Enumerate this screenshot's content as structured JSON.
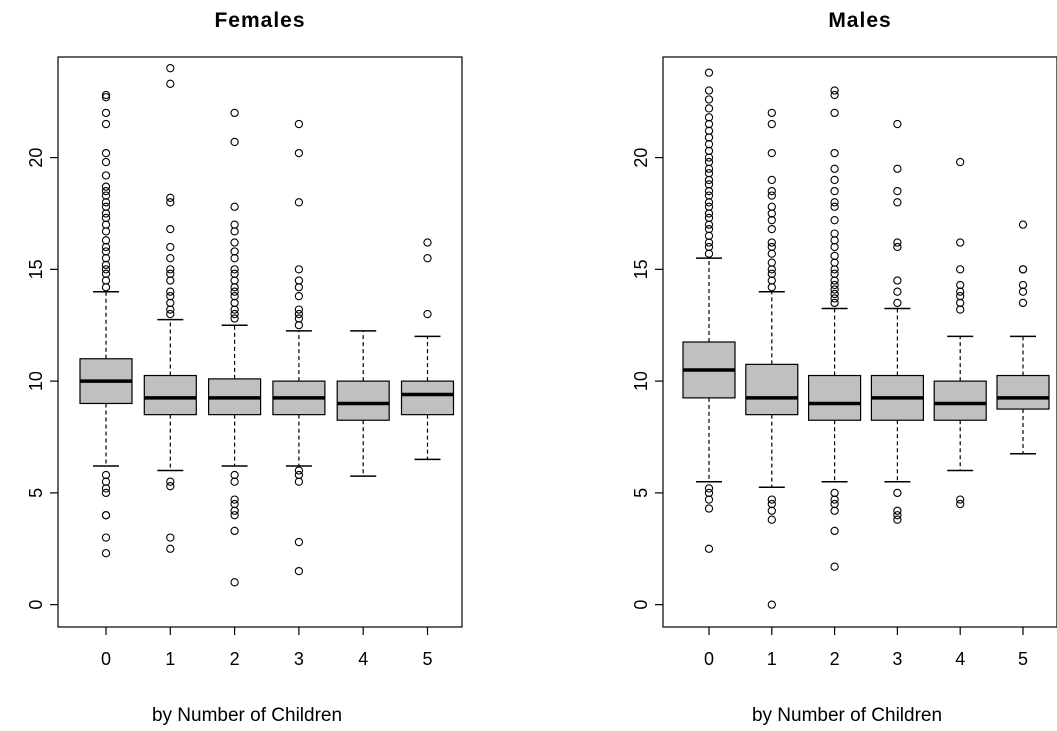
{
  "chart_data": [
    {
      "type": "boxplot",
      "title": "Females",
      "xlabel": "by Number of Children",
      "ylabel": "",
      "ylim": [
        -1,
        24.5
      ],
      "yticks": [
        "0",
        "5",
        "10",
        "15",
        "20"
      ],
      "categories": [
        "0",
        "1",
        "2",
        "3",
        "4",
        "5"
      ],
      "box_color": "#c0c0c0",
      "boxes": [
        {
          "q1": 9.0,
          "median": 10.0,
          "q3": 11.0,
          "whisker_low": 6.2,
          "whisker_high": 14.0,
          "outliers": [
            14.2,
            14.5,
            14.8,
            15.0,
            15.2,
            15.5,
            15.8,
            16.0,
            16.3,
            16.7,
            17.0,
            17.3,
            17.5,
            17.8,
            18.0,
            18.3,
            18.5,
            18.7,
            19.2,
            19.8,
            20.2,
            21.5,
            22.0,
            22.7,
            22.8,
            5.8,
            5.5,
            5.2,
            5.0,
            4.0,
            4.0,
            3.0,
            2.3
          ]
        },
        {
          "q1": 8.5,
          "median": 9.25,
          "q3": 10.25,
          "whisker_low": 6.0,
          "whisker_high": 12.75,
          "outliers": [
            13.0,
            13.2,
            13.5,
            13.8,
            14.0,
            14.5,
            14.8,
            15.0,
            15.5,
            16.0,
            16.8,
            18.0,
            18.2,
            23.3,
            24.0,
            5.5,
            5.3,
            3.0,
            2.5
          ]
        },
        {
          "q1": 8.5,
          "median": 9.25,
          "q3": 10.1,
          "whisker_low": 6.2,
          "whisker_high": 12.5,
          "outliers": [
            12.8,
            13.0,
            13.2,
            13.5,
            13.8,
            14.0,
            14.2,
            14.5,
            14.8,
            15.0,
            15.5,
            15.8,
            16.2,
            16.7,
            17.0,
            17.8,
            20.7,
            22.0,
            5.8,
            5.5,
            4.7,
            4.5,
            4.2,
            4.0,
            3.3,
            1.0
          ]
        },
        {
          "q1": 8.5,
          "median": 9.25,
          "q3": 10.0,
          "whisker_low": 6.2,
          "whisker_high": 12.25,
          "outliers": [
            12.5,
            12.8,
            13.0,
            13.2,
            13.8,
            14.2,
            14.5,
            15.0,
            18.0,
            20.2,
            21.5,
            6.0,
            5.8,
            5.5,
            2.8,
            1.5
          ]
        },
        {
          "q1": 8.25,
          "median": 9.0,
          "q3": 10.0,
          "whisker_low": 5.75,
          "whisker_high": 12.25,
          "outliers": []
        },
        {
          "q1": 8.5,
          "median": 9.4,
          "q3": 10.0,
          "whisker_low": 6.5,
          "whisker_high": 12.0,
          "outliers": [
            13.0,
            15.5,
            16.2
          ]
        }
      ]
    },
    {
      "type": "boxplot",
      "title": "Males",
      "xlabel": "by Number of Children",
      "ylabel": "",
      "ylim": [
        -1,
        24.5
      ],
      "yticks": [
        "0",
        "5",
        "10",
        "15",
        "20"
      ],
      "categories": [
        "0",
        "1",
        "2",
        "3",
        "4",
        "5"
      ],
      "box_color": "#c0c0c0",
      "boxes": [
        {
          "q1": 9.25,
          "median": 10.5,
          "q3": 11.75,
          "whisker_low": 5.5,
          "whisker_high": 15.5,
          "outliers": [
            15.7,
            16.0,
            16.2,
            16.5,
            16.8,
            17.0,
            17.3,
            17.5,
            17.8,
            18.0,
            18.3,
            18.5,
            18.8,
            19.0,
            19.3,
            19.5,
            19.8,
            20.0,
            20.3,
            20.6,
            20.9,
            21.2,
            21.5,
            21.8,
            22.2,
            22.6,
            23.0,
            23.8,
            5.2,
            5.0,
            4.7,
            4.3,
            2.5
          ]
        },
        {
          "q1": 8.5,
          "median": 9.25,
          "q3": 10.75,
          "whisker_low": 5.25,
          "whisker_high": 14.0,
          "outliers": [
            14.2,
            14.5,
            14.8,
            15.0,
            15.3,
            15.7,
            16.0,
            16.2,
            16.8,
            17.2,
            17.5,
            17.8,
            18.3,
            18.5,
            19.0,
            20.2,
            21.5,
            22.0,
            4.7,
            4.5,
            4.2,
            3.8,
            0.0
          ]
        },
        {
          "q1": 8.25,
          "median": 9.0,
          "q3": 10.25,
          "whisker_low": 5.5,
          "whisker_high": 13.25,
          "outliers": [
            13.5,
            13.7,
            13.9,
            14.1,
            14.3,
            14.5,
            14.8,
            15.0,
            15.3,
            15.6,
            16.0,
            16.3,
            16.6,
            17.2,
            17.8,
            18.0,
            18.5,
            19.0,
            19.5,
            20.2,
            22.0,
            22.8,
            23.0,
            5.0,
            4.7,
            4.5,
            4.2,
            3.3,
            1.7
          ]
        },
        {
          "q1": 8.25,
          "median": 9.25,
          "q3": 10.25,
          "whisker_low": 5.5,
          "whisker_high": 13.25,
          "outliers": [
            13.5,
            14.0,
            14.5,
            16.0,
            16.2,
            18.0,
            18.5,
            19.5,
            21.5,
            5.0,
            4.2,
            4.0,
            3.8
          ]
        },
        {
          "q1": 8.25,
          "median": 9.0,
          "q3": 10.0,
          "whisker_low": 6.0,
          "whisker_high": 12.0,
          "outliers": [
            13.2,
            13.5,
            13.8,
            14.0,
            14.3,
            15.0,
            16.2,
            19.8,
            4.7,
            4.5
          ]
        },
        {
          "q1": 8.75,
          "median": 9.25,
          "q3": 10.25,
          "whisker_low": 6.75,
          "whisker_high": 12.0,
          "outliers": [
            13.5,
            14.0,
            14.3,
            15.0,
            15.0,
            17.0
          ]
        }
      ]
    }
  ]
}
